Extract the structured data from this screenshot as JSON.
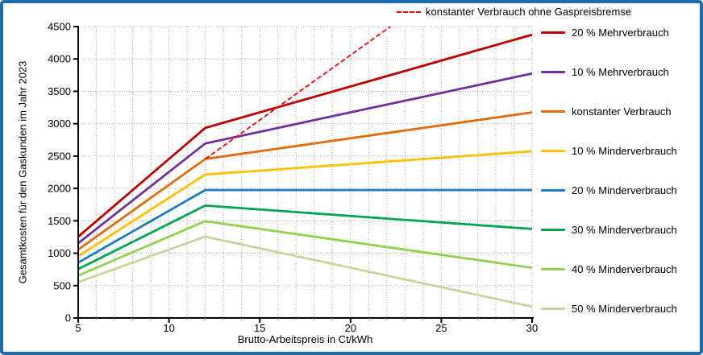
{
  "window": {
    "background": "#FFFFFF",
    "border_color": "#1B6CB0"
  },
  "chart_data": {
    "type": "line",
    "title": "",
    "xlabel": "Brutto-Arbeitspreis in Ct/kWh",
    "ylabel": "Gesamtkosten für den Gaskunden im Jahr 2023",
    "xlim": [
      5,
      30
    ],
    "ylim": [
      0,
      4500
    ],
    "x_ticks": [
      5,
      10,
      15,
      20,
      25,
      30
    ],
    "x_minor_step": 1,
    "y_ticks": [
      0,
      500,
      1000,
      1500,
      2000,
      2500,
      3000,
      3500,
      4000,
      4500
    ],
    "grid": {
      "color": "#ABABAB",
      "x_step": 1,
      "y_step": 500,
      "style": "dotted"
    },
    "axis_color": "#000000",
    "legend_position": "right",
    "price_brake_kink_x": 12,
    "series": [
      {
        "name": "konstanter Verbrauch ohne Gaspreisbremse",
        "color": "#FF0000",
        "dash": true,
        "points": [
          [
            12,
            2455
          ],
          [
            22.2,
            4500
          ]
        ]
      },
      {
        "name": "20 % Mehrverbrauch",
        "color": "#C00000",
        "dash": false,
        "points": [
          [
            5,
            1255
          ],
          [
            12,
            2935
          ],
          [
            30,
            4375
          ]
        ]
      },
      {
        "name": "10 % Mehrverbrauch",
        "color": "#7030A0",
        "dash": false,
        "points": [
          [
            5,
            1155
          ],
          [
            12,
            2695
          ],
          [
            30,
            3775
          ]
        ]
      },
      {
        "name": "konstanter Verbrauch",
        "color": "#E36C0A",
        "dash": false,
        "points": [
          [
            5,
            1055
          ],
          [
            12,
            2455
          ],
          [
            30,
            3175
          ]
        ]
      },
      {
        "name": "10 % Minderverbrauch",
        "color": "#FFC000",
        "dash": false,
        "points": [
          [
            5,
            955
          ],
          [
            12,
            2215
          ],
          [
            30,
            2575
          ]
        ]
      },
      {
        "name": "20 % Minderverbrauch",
        "color": "#1E7CC2",
        "dash": false,
        "points": [
          [
            5,
            855
          ],
          [
            12,
            1975
          ],
          [
            30,
            1975
          ]
        ]
      },
      {
        "name": "30 % Minderverbrauch",
        "color": "#00A550",
        "dash": false,
        "points": [
          [
            5,
            755
          ],
          [
            12,
            1735
          ],
          [
            30,
            1375
          ]
        ]
      },
      {
        "name": "40 % Minderverbrauch",
        "color": "#92D050",
        "dash": false,
        "points": [
          [
            5,
            655
          ],
          [
            12,
            1495
          ],
          [
            30,
            775
          ]
        ]
      },
      {
        "name": "50 % Minderverbrauch",
        "color": "#C3D69B",
        "dash": false,
        "points": [
          [
            5,
            555
          ],
          [
            12,
            1255
          ],
          [
            30,
            175
          ]
        ]
      }
    ]
  }
}
